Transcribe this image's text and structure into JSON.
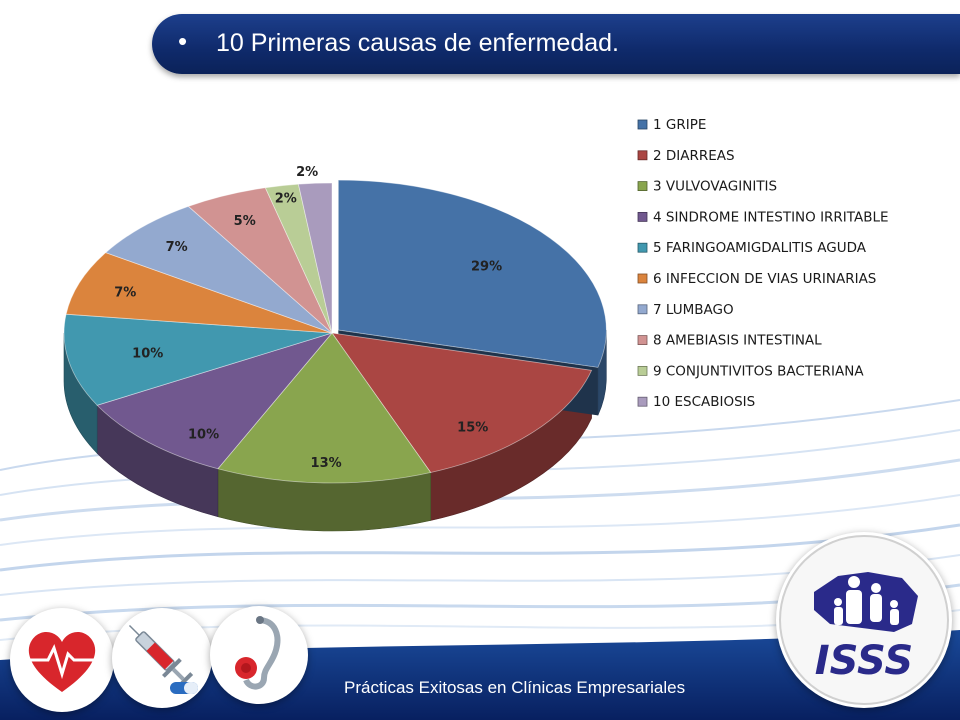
{
  "slide": {
    "bullet": "•",
    "title": "10 Primeras causas de enfermedad.",
    "footer": "Prácticas Exitosas en Clínicas Empresariales"
  },
  "logo": {
    "text": "ISSS",
    "color": "#2a2a8a"
  },
  "colors": {
    "title_bar": "#0f2a6b",
    "footer_bar": "#0b2a6f"
  },
  "chart_data": {
    "type": "pie",
    "legend_position": "right",
    "slices": [
      {
        "label": "1 GRIPE",
        "value": 29,
        "value_label": "29%",
        "color": "#4572a7"
      },
      {
        "label": "2 DIARREAS",
        "value": 15,
        "value_label": "15%",
        "color": "#aa4643"
      },
      {
        "label": "3 VULVOVAGINITIS",
        "value": 13,
        "value_label": "13%",
        "color": "#89a54e"
      },
      {
        "label": "4 SINDROME INTESTINO IRRITABLE",
        "value": 10,
        "value_label": "10%",
        "color": "#71588f"
      },
      {
        "label": "5 FARINGOAMIGDALITIS AGUDA",
        "value": 10,
        "value_label": "10%",
        "color": "#4198af"
      },
      {
        "label": "6 INFECCION DE VIAS URINARIAS",
        "value": 7,
        "value_label": "7%",
        "color": "#db843d"
      },
      {
        "label": "7 LUMBAGO",
        "value": 7,
        "value_label": "7%",
        "color": "#93a9cf"
      },
      {
        "label": "8 AMEBIASIS INTESTINAL",
        "value": 5,
        "value_label": "5%",
        "color": "#d19392"
      },
      {
        "label": "9 CONJUNTIVITOS BACTERIANA",
        "value": 2,
        "value_label": "2%",
        "color": "#b9cd96"
      },
      {
        "label": "10 ESCABIOSIS",
        "value": 2,
        "value_label": "2%",
        "color": "#a99bbd"
      }
    ]
  }
}
